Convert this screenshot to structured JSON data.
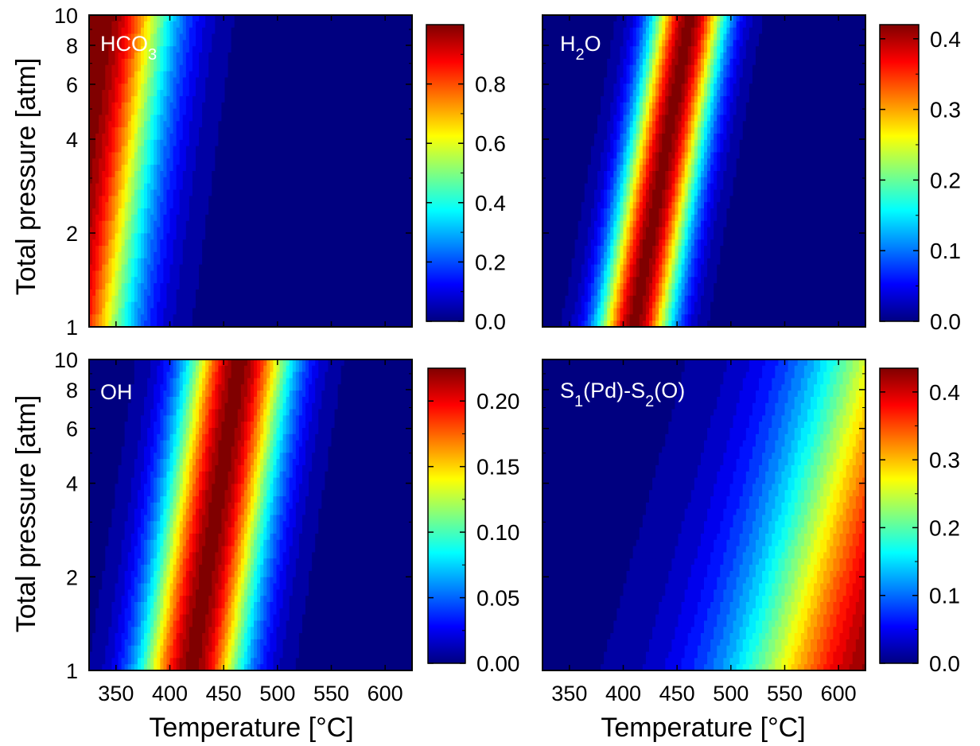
{
  "figure": {
    "xlabel": "Temperature [°C]",
    "ylabel": "Total pressure [atm]"
  },
  "chart_data": [
    {
      "type": "heatmap",
      "label": "HCO3",
      "x_ticks": [
        350,
        400,
        450,
        500,
        550,
        600
      ],
      "xlim": [
        325,
        625
      ],
      "y_scale": "log",
      "y_ticks": [
        1,
        2,
        4,
        6,
        8,
        10
      ],
      "ylim": [
        1,
        10
      ],
      "colorbar": {
        "min": 0.0,
        "max": 1.0,
        "ticks": [
          "0.0",
          "0.2",
          "0.4",
          "0.6",
          "0.8"
        ]
      },
      "field": {
        "peak_T_at_1atm": 300,
        "peak_T_at_10atm": 340,
        "width": 60,
        "edge": "high",
        "peak": 1.0,
        "min": 0.0
      }
    },
    {
      "type": "heatmap",
      "label": "H2O",
      "x_ticks": [
        350,
        400,
        450,
        500,
        550,
        600
      ],
      "xlim": [
        325,
        625
      ],
      "y_scale": "log",
      "y_ticks": [
        1,
        2,
        4,
        6,
        8,
        10
      ],
      "ylim": [
        1,
        10
      ],
      "colorbar": {
        "min": 0.0,
        "max": 0.42,
        "ticks": [
          "0.0",
          "0.1",
          "0.2",
          "0.3",
          "0.4"
        ]
      },
      "field": {
        "peak_T_at_1atm": 410,
        "peak_T_at_10atm": 462,
        "width": 34,
        "edge": "band",
        "peak": 0.42,
        "min": 0.0
      }
    },
    {
      "type": "heatmap",
      "label": "OH",
      "x_ticks": [
        350,
        400,
        450,
        500,
        550,
        600
      ],
      "xlim": [
        325,
        625
      ],
      "y_scale": "log",
      "y_ticks": [
        1,
        2,
        4,
        6,
        8,
        10
      ],
      "ylim": [
        1,
        10
      ],
      "colorbar": {
        "min": 0.0,
        "max": 0.225,
        "ticks": [
          "0.00",
          "0.05",
          "0.10",
          "0.15",
          "0.20"
        ]
      },
      "field": {
        "peak_T_at_1atm": 420,
        "peak_T_at_10atm": 465,
        "width": 48,
        "edge": "band",
        "peak": 0.225,
        "min": 0.0
      }
    },
    {
      "type": "heatmap",
      "label": "S1(Pd)-S2(O)",
      "x_ticks": [
        350,
        400,
        450,
        500,
        550,
        600
      ],
      "xlim": [
        325,
        625
      ],
      "y_scale": "log",
      "y_ticks": [
        1,
        2,
        4,
        6,
        8,
        10
      ],
      "ylim": [
        1,
        10
      ],
      "colorbar": {
        "min": 0.0,
        "max": 0.435,
        "ticks": [
          "0.0",
          "0.1",
          "0.2",
          "0.3",
          "0.4"
        ]
      },
      "field": {
        "peak_T_at_1atm": 640,
        "peak_T_at_10atm": 720,
        "width": 130,
        "edge": "low",
        "peak": 0.435,
        "min": 0.0
      }
    }
  ]
}
